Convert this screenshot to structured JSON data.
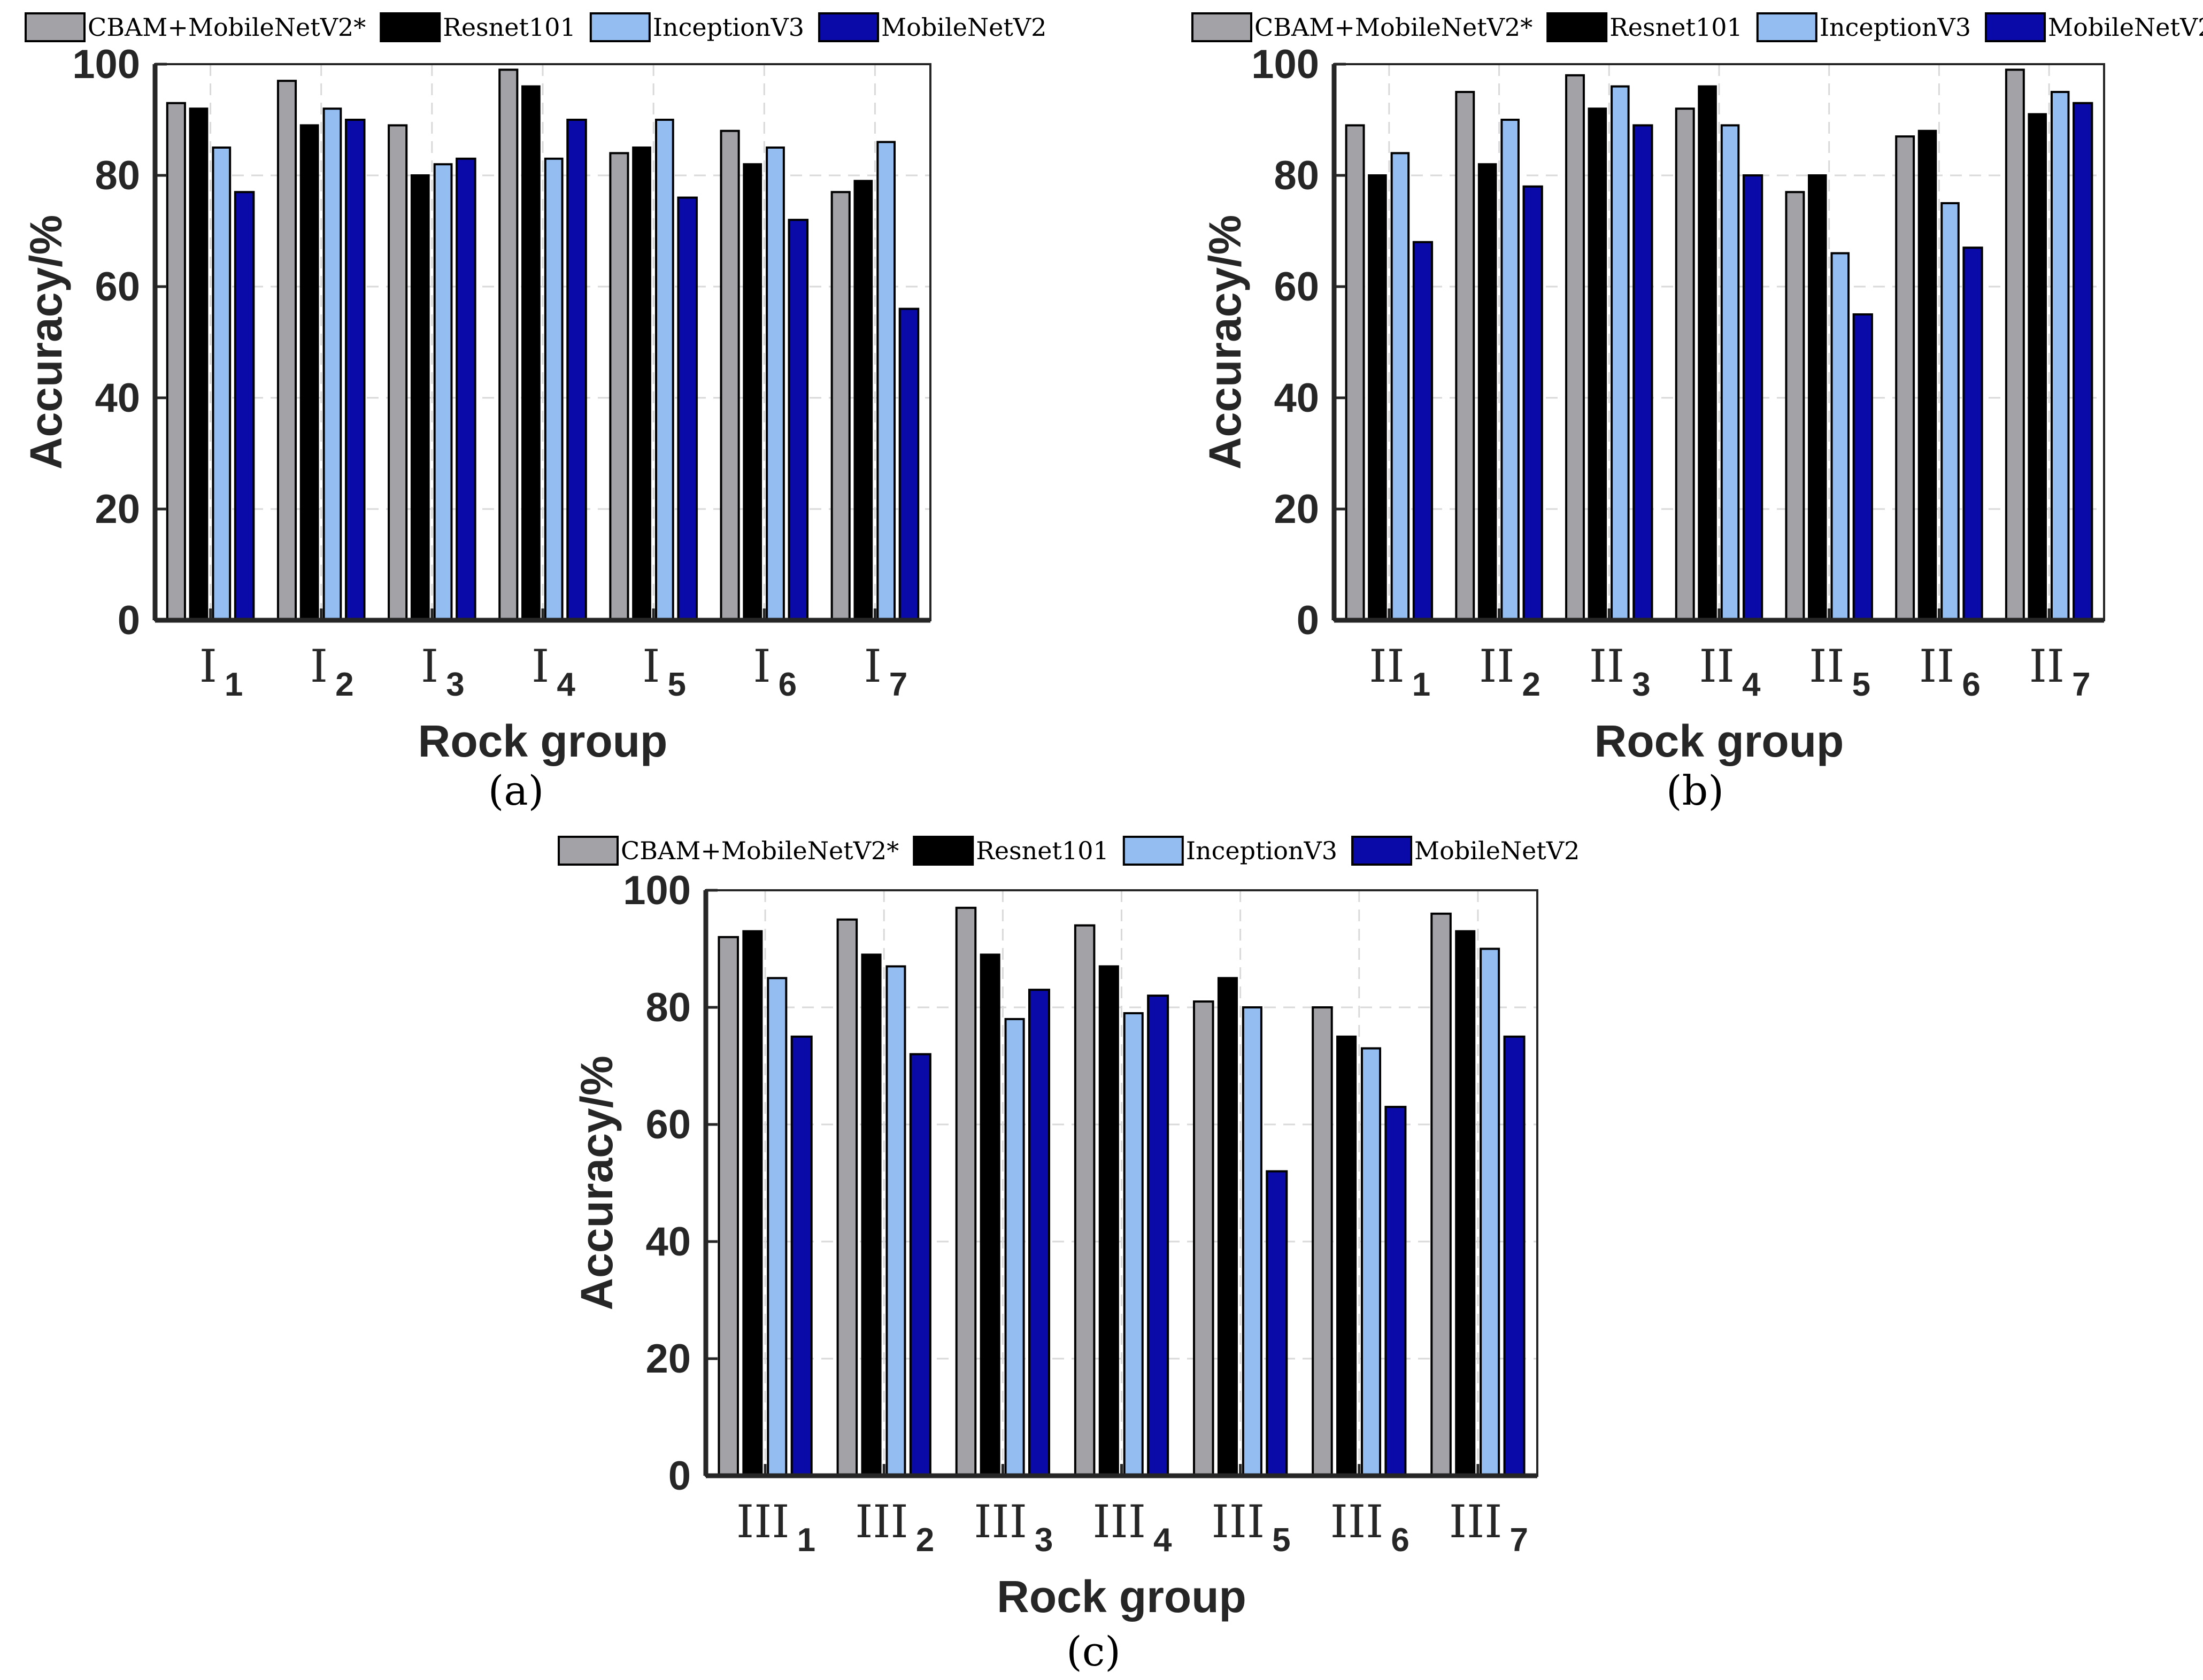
{
  "figure": {
    "legend_labels": [
      "CBAM+MobileNetV2*",
      "Resnet101",
      "InceptionV3",
      "MobileNetV2"
    ]
  },
  "colors": {
    "CBAM+MobileNetV2*": "#a3a3a7",
    "Resnet101": "#000000",
    "InceptionV3": "#94bdf2",
    "MobileNetV2": "#0a0aa8",
    "grid": "#d9d9d9",
    "axis": "#262626"
  },
  "chart_data": [
    {
      "type": "bar",
      "panel_label": "(a)",
      "xlabel": "Rock group",
      "ylabel": "Accuracy/%",
      "ylim": [
        0,
        100
      ],
      "yticks": [
        0,
        20,
        40,
        60,
        80,
        100
      ],
      "grid": true,
      "legend_position": "top",
      "category_base": "I",
      "categories": [
        "1",
        "2",
        "3",
        "4",
        "5",
        "6",
        "7"
      ],
      "series": [
        {
          "name": "CBAM+MobileNetV2*",
          "values": [
            93,
            97,
            89,
            99,
            84,
            88,
            77
          ]
        },
        {
          "name": "Resnet101",
          "values": [
            92,
            89,
            80,
            96,
            85,
            82,
            79
          ]
        },
        {
          "name": "InceptionV3",
          "values": [
            85,
            92,
            82,
            83,
            90,
            85,
            86
          ]
        },
        {
          "name": "MobileNetV2",
          "values": [
            77,
            90,
            83,
            90,
            76,
            72,
            56
          ]
        }
      ]
    },
    {
      "type": "bar",
      "panel_label": "(b)",
      "xlabel": "Rock group",
      "ylabel": "Accuracy/%",
      "ylim": [
        0,
        100
      ],
      "yticks": [
        0,
        20,
        40,
        60,
        80,
        100
      ],
      "grid": true,
      "legend_position": "top",
      "category_base": "II",
      "categories": [
        "1",
        "2",
        "3",
        "4",
        "5",
        "6",
        "7"
      ],
      "series": [
        {
          "name": "CBAM+MobileNetV2*",
          "values": [
            89,
            95,
            98,
            92,
            77,
            87,
            99
          ]
        },
        {
          "name": "Resnet101",
          "values": [
            80,
            82,
            92,
            96,
            80,
            88,
            91
          ]
        },
        {
          "name": "InceptionV3",
          "values": [
            84,
            90,
            96,
            89,
            66,
            75,
            95
          ]
        },
        {
          "name": "MobileNetV2",
          "values": [
            68,
            78,
            89,
            80,
            55,
            67,
            93
          ]
        }
      ]
    },
    {
      "type": "bar",
      "panel_label": "(c)",
      "xlabel": "Rock group",
      "ylabel": "Accuracy/%",
      "ylim": [
        0,
        100
      ],
      "yticks": [
        0,
        20,
        40,
        60,
        80,
        100
      ],
      "grid": true,
      "legend_position": "top",
      "category_base": "III",
      "categories": [
        "1",
        "2",
        "3",
        "4",
        "5",
        "6",
        "7"
      ],
      "series": [
        {
          "name": "CBAM+MobileNetV2*",
          "values": [
            92,
            95,
            97,
            94,
            81,
            80,
            96
          ]
        },
        {
          "name": "Resnet101",
          "values": [
            93,
            89,
            89,
            87,
            85,
            75,
            93
          ]
        },
        {
          "name": "InceptionV3",
          "values": [
            85,
            87,
            78,
            79,
            80,
            73,
            90
          ]
        },
        {
          "name": "MobileNetV2",
          "values": [
            75,
            72,
            83,
            82,
            52,
            63,
            75
          ]
        }
      ]
    }
  ]
}
